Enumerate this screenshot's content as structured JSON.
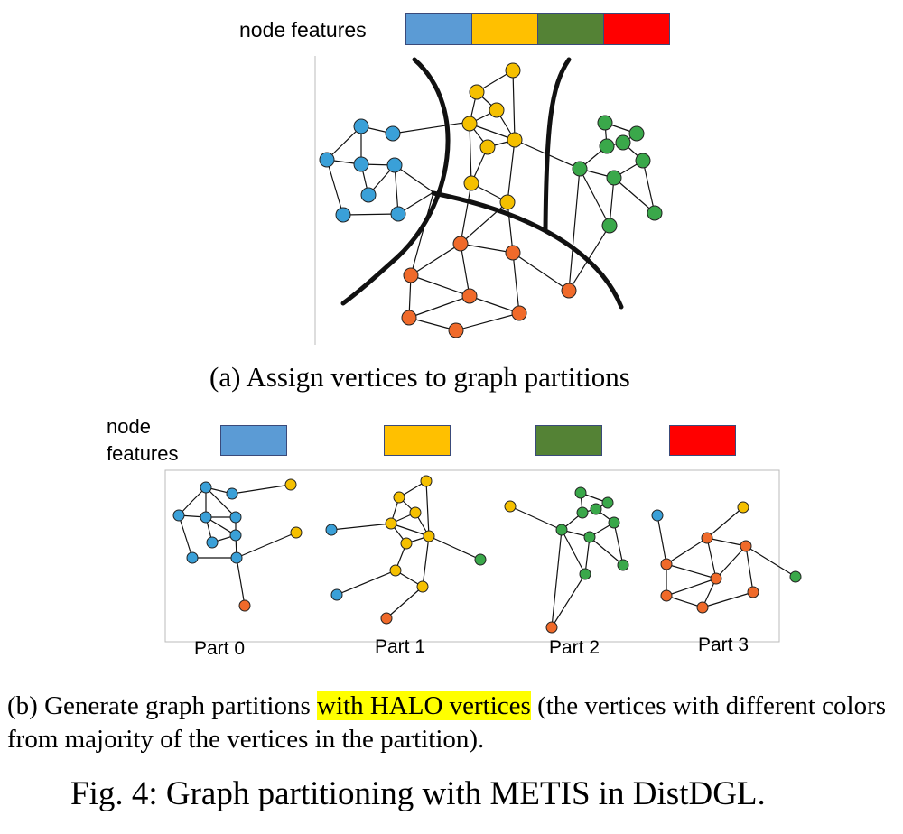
{
  "colors": {
    "blue": "#5b9bd5",
    "yellow": "#ffc000",
    "green": "#548235",
    "red": "#ff0000",
    "node_blue": "#3aa0d8",
    "node_yellow": "#f5c000",
    "node_green": "#3aa84a",
    "node_orange": "#f06a2a"
  },
  "panel_a": {
    "legend_label": "node features",
    "caption": "(a) Assign vertices to graph partitions"
  },
  "panel_b": {
    "legend_label_line1": "node",
    "legend_label_line2": "features",
    "parts": [
      "Part 0",
      "Part 1",
      "Part 2",
      "Part 3"
    ],
    "caption_before": "(b) Generate graph partitions ",
    "caption_highlight": "with HALO vertices",
    "caption_after": " (the vertices with different colors from majority of the vertices in the partition)."
  },
  "figure_caption": "Fig. 4: Graph partitioning with METIS in DistDGL."
}
